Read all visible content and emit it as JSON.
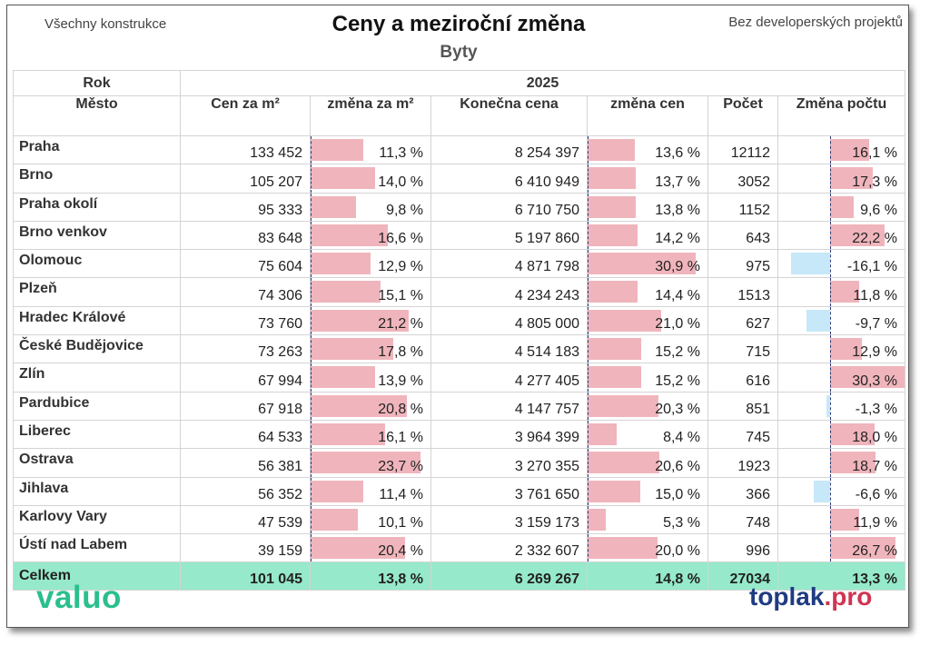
{
  "header": {
    "left_note": "Všechny konstrukce",
    "title": "Ceny a meziroční změna",
    "subtitle": "Byty",
    "right_note": "Bez developerských projektů"
  },
  "table": {
    "year_label": "Rok",
    "year": "2025",
    "columns": [
      "Město",
      "Cen za m²",
      "změna za m²",
      "Konečna cena",
      "změna cen",
      "Počet",
      "Změna počtu"
    ],
    "rows": [
      {
        "city": "Praha",
        "price_m2": "133 452",
        "chg_m2": "11,3 %",
        "chg_m2_v": 11.3,
        "final_price": "8 254 397",
        "chg_price": "13,6 %",
        "chg_price_v": 13.6,
        "count": "12112",
        "chg_count": "16,1 %",
        "chg_count_v": 16.1
      },
      {
        "city": "Brno",
        "price_m2": "105 207",
        "chg_m2": "14,0 %",
        "chg_m2_v": 14.0,
        "final_price": "6 410 949",
        "chg_price": "13,7 %",
        "chg_price_v": 13.7,
        "count": "3052",
        "chg_count": "17,3 %",
        "chg_count_v": 17.3
      },
      {
        "city": "Praha okolí",
        "price_m2": "95 333",
        "chg_m2": "9,8 %",
        "chg_m2_v": 9.8,
        "final_price": "6 710 750",
        "chg_price": "13,8 %",
        "chg_price_v": 13.8,
        "count": "1152",
        "chg_count": "9,6 %",
        "chg_count_v": 9.6
      },
      {
        "city": "Brno venkov",
        "price_m2": "83 648",
        "chg_m2": "16,6 %",
        "chg_m2_v": 16.6,
        "final_price": "5 197 860",
        "chg_price": "14,2 %",
        "chg_price_v": 14.2,
        "count": "643",
        "chg_count": "22,2 %",
        "chg_count_v": 22.2
      },
      {
        "city": "Olomouc",
        "price_m2": "75 604",
        "chg_m2": "12,9 %",
        "chg_m2_v": 12.9,
        "final_price": "4 871 798",
        "chg_price": "30,9 %",
        "chg_price_v": 30.9,
        "count": "975",
        "chg_count": "-16,1 %",
        "chg_count_v": -16.1
      },
      {
        "city": "Plzeň",
        "price_m2": "74 306",
        "chg_m2": "15,1 %",
        "chg_m2_v": 15.1,
        "final_price": "4 234 243",
        "chg_price": "14,4 %",
        "chg_price_v": 14.4,
        "count": "1513",
        "chg_count": "11,8 %",
        "chg_count_v": 11.8
      },
      {
        "city": "Hradec Králové",
        "price_m2": "73 760",
        "chg_m2": "21,2 %",
        "chg_m2_v": 21.2,
        "final_price": "4 805 000",
        "chg_price": "21,0 %",
        "chg_price_v": 21.0,
        "count": "627",
        "chg_count": "-9,7 %",
        "chg_count_v": -9.7
      },
      {
        "city": "České Budějovice",
        "price_m2": "73 263",
        "chg_m2": "17,8 %",
        "chg_m2_v": 17.8,
        "final_price": "4 514 183",
        "chg_price": "15,2 %",
        "chg_price_v": 15.2,
        "count": "715",
        "chg_count": "12,9 %",
        "chg_count_v": 12.9
      },
      {
        "city": "Zlín",
        "price_m2": "67 994",
        "chg_m2": "13,9 %",
        "chg_m2_v": 13.9,
        "final_price": "4 277 405",
        "chg_price": "15,2 %",
        "chg_price_v": 15.2,
        "count": "616",
        "chg_count": "30,3 %",
        "chg_count_v": 30.3
      },
      {
        "city": "Pardubice",
        "price_m2": "67 918",
        "chg_m2": "20,8 %",
        "chg_m2_v": 20.8,
        "final_price": "4 147 757",
        "chg_price": "20,3 %",
        "chg_price_v": 20.3,
        "count": "851",
        "chg_count": "-1,3 %",
        "chg_count_v": -1.3
      },
      {
        "city": "Liberec",
        "price_m2": "64 533",
        "chg_m2": "16,1 %",
        "chg_m2_v": 16.1,
        "final_price": "3 964 399",
        "chg_price": "8,4 %",
        "chg_price_v": 8.4,
        "count": "745",
        "chg_count": "18,0 %",
        "chg_count_v": 18.0
      },
      {
        "city": "Ostrava",
        "price_m2": "56 381",
        "chg_m2": "23,7 %",
        "chg_m2_v": 23.7,
        "final_price": "3 270 355",
        "chg_price": "20,6 %",
        "chg_price_v": 20.6,
        "count": "1923",
        "chg_count": "18,7 %",
        "chg_count_v": 18.7
      },
      {
        "city": "Jihlava",
        "price_m2": "56 352",
        "chg_m2": "11,4 %",
        "chg_m2_v": 11.4,
        "final_price": "3 761 650",
        "chg_price": "15,0 %",
        "chg_price_v": 15.0,
        "count": "366",
        "chg_count": "-6,6 %",
        "chg_count_v": -6.6
      },
      {
        "city": "Karlovy Vary",
        "price_m2": "47 539",
        "chg_m2": "10,1 %",
        "chg_m2_v": 10.1,
        "final_price": "3 159 173",
        "chg_price": "5,3 %",
        "chg_price_v": 5.3,
        "count": "748",
        "chg_count": "11,9 %",
        "chg_count_v": 11.9
      },
      {
        "city": "Ústí nad Labem",
        "price_m2": "39 159",
        "chg_m2": "20,4 %",
        "chg_m2_v": 20.4,
        "final_price": "2 332 607",
        "chg_price": "20,0 %",
        "chg_price_v": 20.0,
        "count": "996",
        "chg_count": "26,7 %",
        "chg_count_v": 26.7
      }
    ],
    "total": {
      "city": "Celkem",
      "price_m2": "101 045",
      "chg_m2": "13,8 %",
      "final_price": "6 269 267",
      "chg_price": "14,8 %",
      "count": "27034",
      "chg_count": "13,3 %"
    }
  },
  "colors": {
    "positive_bar": "#f0b5bc",
    "negative_bar": "#c6e8f9",
    "total_row": "#96e9cb",
    "valuo_logo": "#2bbf8e",
    "toplak_blue": "#1f3b82",
    "toplak_red": "#d13452"
  },
  "footer": {
    "logo_left": "valuo",
    "logo_right_main": "toplak",
    "logo_right_suffix": ".pro"
  }
}
